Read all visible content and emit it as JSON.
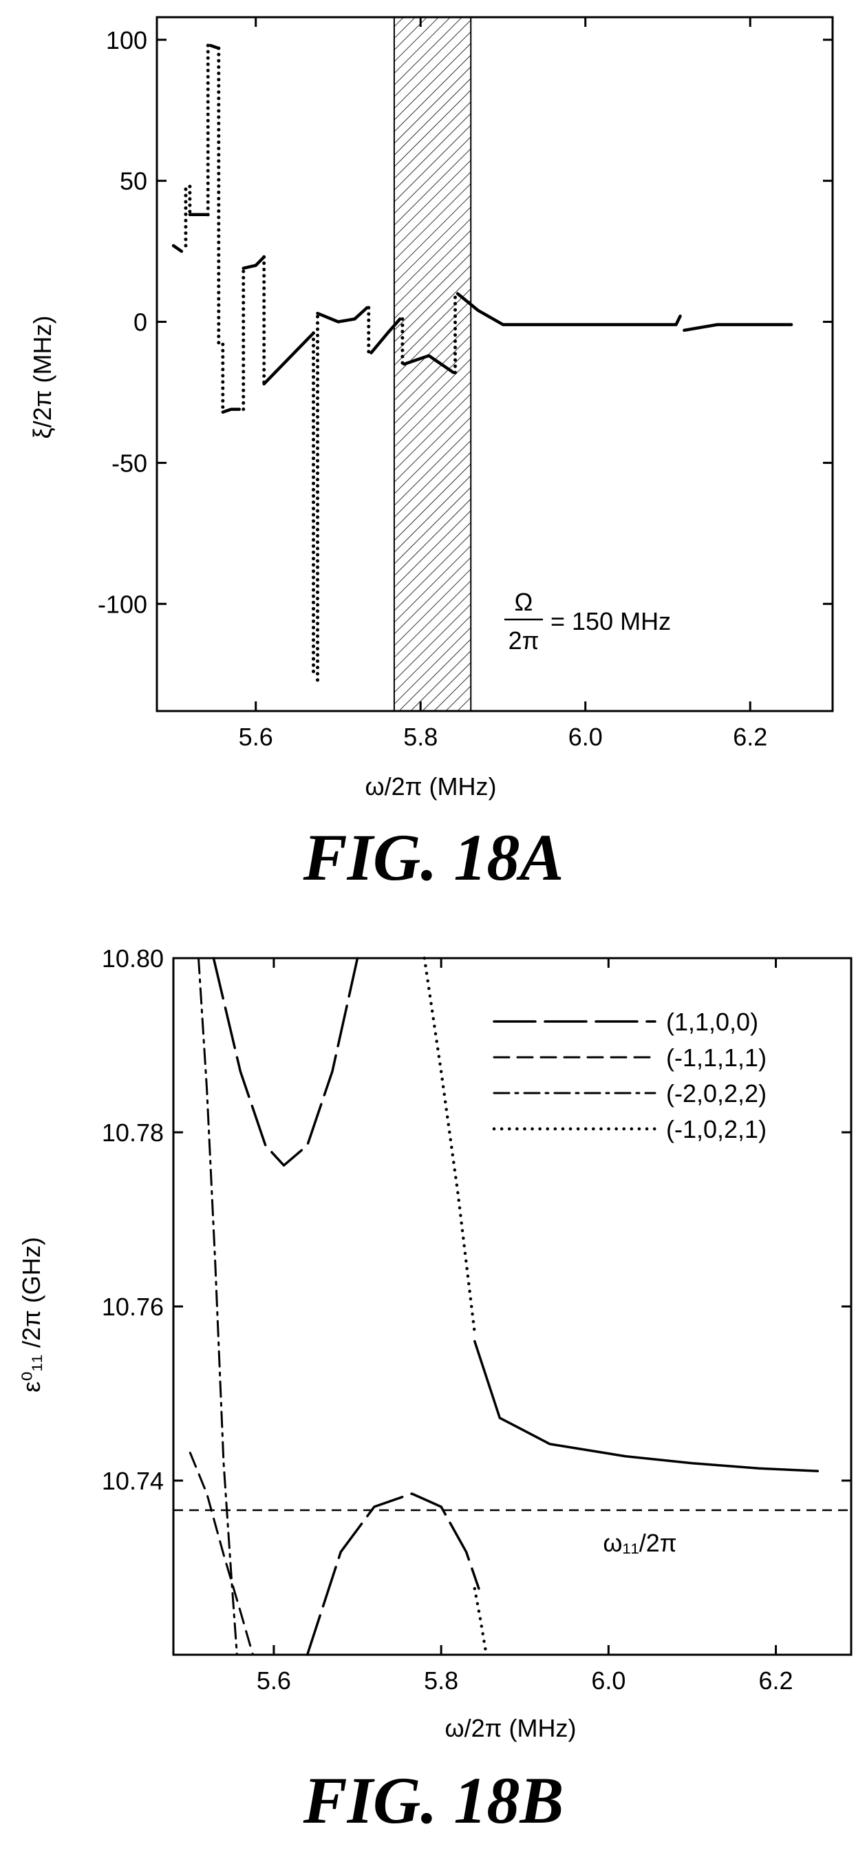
{
  "figures": {
    "a": {
      "caption": "FIG. 18A"
    },
    "b": {
      "caption": "FIG. 18B"
    }
  },
  "chart_data": [
    {
      "type": "line",
      "ylabel": "ξ/2π (MHz)",
      "xlabel": "ω/2π (MHz)",
      "xlim": [
        5.48,
        6.3
      ],
      "ylim": [
        -138,
        108
      ],
      "xticks": [
        5.6,
        5.8,
        6.0,
        6.2
      ],
      "xtick_labels": [
        "5.6",
        "5.8",
        "6.0",
        "6.2"
      ],
      "yticks": [
        100,
        50,
        0,
        -50,
        -100
      ],
      "ytick_labels": [
        "100",
        "50",
        "0",
        "-50",
        "-100"
      ],
      "annotation": {
        "numerator": "Ω",
        "denominator": "2π",
        "text": "= 150 MHz"
      },
      "shaded_band": [
        5.768,
        5.861
      ],
      "series": [
        {
          "x": [
            5.5,
            5.51
          ],
          "y": [
            27,
            25
          ]
        },
        {
          "x": [
            5.52,
            5.53,
            5.54
          ],
          "y": [
            38,
            38,
            38
          ]
        },
        {
          "x": [
            5.545,
            5.555
          ],
          "y": [
            98,
            97
          ]
        },
        {
          "x": [
            5.56,
            5.57,
            5.58
          ],
          "y": [
            -32,
            -31,
            -31
          ]
        },
        {
          "x": [
            5.585,
            5.6,
            5.61
          ],
          "y": [
            19,
            20,
            23
          ]
        },
        {
          "x": [
            5.61,
            5.64,
            5.67
          ],
          "y": [
            -22,
            -13,
            -4
          ]
        },
        {
          "x": [
            5.675,
            5.7,
            5.72,
            5.735
          ],
          "y": [
            3,
            0,
            1,
            5
          ]
        },
        {
          "x": [
            5.74,
            5.76,
            5.775
          ],
          "y": [
            -11,
            -4,
            1
          ]
        },
        {
          "x": [
            5.78,
            5.81,
            5.84
          ],
          "y": [
            -15,
            -12,
            -18
          ]
        },
        {
          "x": [
            5.845,
            5.87,
            5.9,
            6.0,
            6.11,
            6.115
          ],
          "y": [
            10,
            4,
            -1,
            -1,
            -1,
            2
          ]
        },
        {
          "x": [
            6.12,
            6.16,
            6.25
          ],
          "y": [
            -3,
            -1,
            -1
          ]
        }
      ],
      "dotted_jumps": [
        {
          "x": 5.515,
          "y_from": 27,
          "y_to": 48
        },
        {
          "x": 5.52,
          "y_from": 48,
          "y_to": 38
        },
        {
          "x": 5.542,
          "y_from": 38,
          "y_to": 98
        },
        {
          "x": 5.555,
          "y_from": 97,
          "y_to": -8
        },
        {
          "x": 5.56,
          "y_from": -8,
          "y_to": -32
        },
        {
          "x": 5.585,
          "y_from": -31,
          "y_to": 19
        },
        {
          "x": 5.61,
          "y_from": 23,
          "y_to": -22
        },
        {
          "x": 5.67,
          "y_from": -4,
          "y_to": -125
        },
        {
          "x": 5.675,
          "y_from": -127,
          "y_to": 3
        },
        {
          "x": 5.737,
          "y_from": 5,
          "y_to": -11
        },
        {
          "x": 5.778,
          "y_from": 1,
          "y_to": -15
        },
        {
          "x": 5.842,
          "y_from": -18,
          "y_to": 10
        }
      ]
    },
    {
      "type": "line",
      "ylabel": "ε⁰₁₁ /2π (GHz)",
      "xlabel": "ω/2π (MHz)",
      "xlim": [
        5.48,
        6.29
      ],
      "ylim": [
        10.72,
        10.8
      ],
      "xticks": [
        5.6,
        5.8,
        6.0,
        6.2
      ],
      "xtick_labels": [
        "5.6",
        "5.8",
        "6.0",
        "6.2"
      ],
      "yticks": [
        10.8,
        10.78,
        10.76,
        10.74
      ],
      "ytick_labels": [
        "10.80",
        "10.78",
        "10.76",
        "10.74"
      ],
      "reference_line": {
        "y": 10.7366,
        "label": "ω₁₁/2π"
      },
      "legend": [
        "(1,1,0,0)",
        "(-1,1,1,1)",
        "(-2,0,2,2)",
        "(-1,0,2,1)"
      ],
      "legend_position": "top-right",
      "series": [
        {
          "name": "(1,1,0,0)",
          "style": "long-dash",
          "segments": [
            {
              "x": [
                5.528,
                5.56,
                5.59,
                5.612,
                5.64,
                5.67,
                5.7
              ],
              "y": [
                10.8,
                10.787,
                10.7785,
                10.7762,
                10.7785,
                10.787,
                10.8
              ]
            },
            {
              "x": [
                5.64,
                5.68,
                5.72,
                5.765,
                5.8,
                5.83,
                5.845
              ],
              "y": [
                10.72,
                10.7318,
                10.737,
                10.7385,
                10.737,
                10.7318,
                10.7276
              ]
            },
            {
              "x": [
                5.84,
                5.87,
                5.93,
                6.02,
                6.1,
                6.18,
                6.25
              ],
              "y": [
                10.756,
                10.7472,
                10.7442,
                10.7428,
                10.742,
                10.7414,
                10.7411
              ]
            }
          ]
        },
        {
          "name": "(-1,1,1,1)",
          "style": "dash",
          "segments": [
            {
              "x": [
                5.5,
                5.52,
                5.54,
                5.56,
                5.575
              ],
              "y": [
                10.7432,
                10.7385,
                10.7315,
                10.725,
                10.72
              ]
            }
          ]
        },
        {
          "name": "(-2,0,2,2)",
          "style": "dash-dot",
          "segments": [
            {
              "x": [
                5.51,
                5.52,
                5.53,
                5.54,
                5.55,
                5.556
              ],
              "y": [
                10.8,
                10.785,
                10.765,
                10.742,
                10.728,
                10.72
              ]
            }
          ]
        },
        {
          "name": "(-1,0,2,1)",
          "style": "dot",
          "segments": [
            {
              "x": [
                5.78,
                5.8,
                5.82,
                5.84
              ],
              "y": [
                10.8,
                10.787,
                10.773,
                10.757
              ]
            },
            {
              "x": [
                5.84,
                5.847,
                5.854
              ],
              "y": [
                10.7276,
                10.724,
                10.72
              ]
            }
          ]
        }
      ]
    }
  ]
}
